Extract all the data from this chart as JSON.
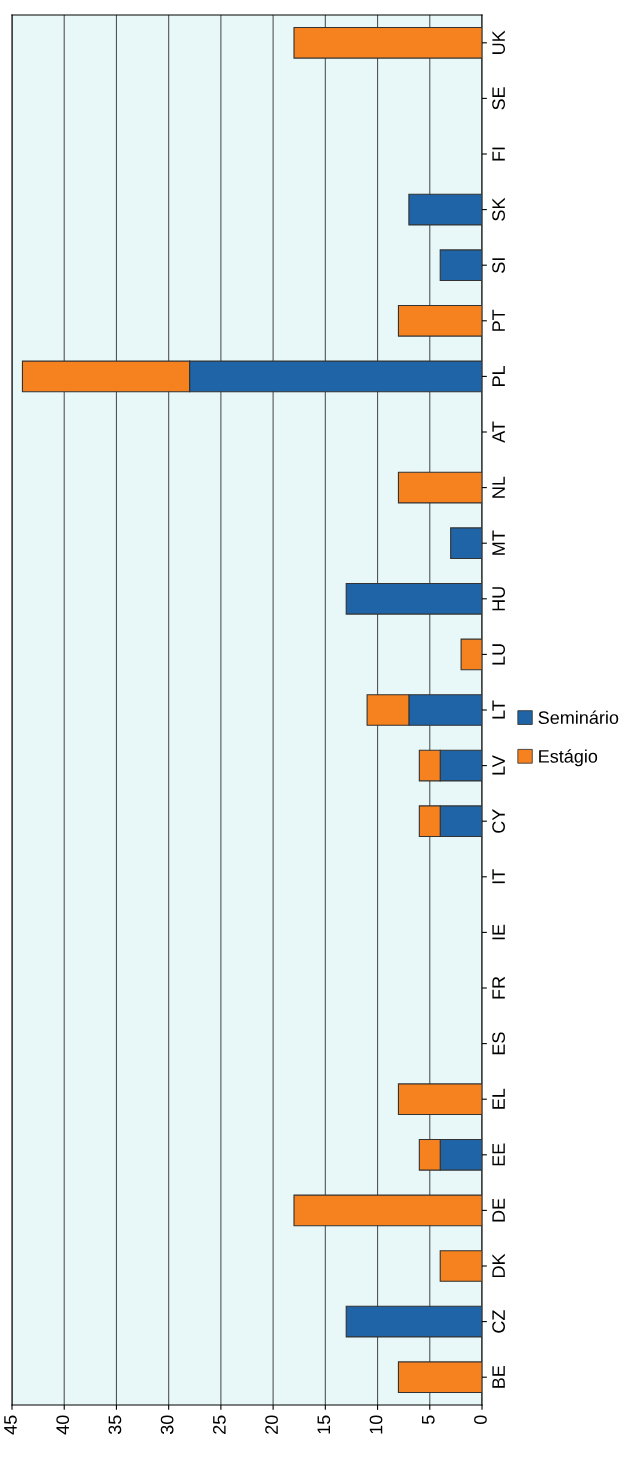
{
  "chart_data": {
    "type": "bar",
    "orientation": "horizontal",
    "stacked": true,
    "categories": [
      "UK",
      "SE",
      "FI",
      "SK",
      "SI",
      "PT",
      "PL",
      "AT",
      "NL",
      "MT",
      "HU",
      "LU",
      "LT",
      "LV",
      "CY",
      "IT",
      "IE",
      "FR",
      "ES",
      "EL",
      "EE",
      "DE",
      "DK",
      "CZ",
      "BE"
    ],
    "series": [
      {
        "name": "Seminário",
        "color": "#1f64a6",
        "values": [
          null,
          null,
          null,
          7,
          4,
          null,
          28,
          null,
          null,
          3,
          13,
          null,
          7,
          4,
          4,
          null,
          null,
          null,
          null,
          null,
          4,
          null,
          null,
          13,
          null
        ]
      },
      {
        "name": "Estágio",
        "color": "#f5821f",
        "values": [
          18,
          null,
          null,
          null,
          null,
          8,
          16,
          null,
          8,
          null,
          null,
          2,
          4,
          2,
          2,
          null,
          null,
          null,
          null,
          8,
          2,
          18,
          4,
          null,
          8
        ]
      }
    ],
    "xlim": [
      45,
      0
    ],
    "xticks": [
      0,
      5,
      10,
      15,
      20,
      25,
      30,
      35,
      40,
      45
    ],
    "grid": "x",
    "legend": "right"
  }
}
